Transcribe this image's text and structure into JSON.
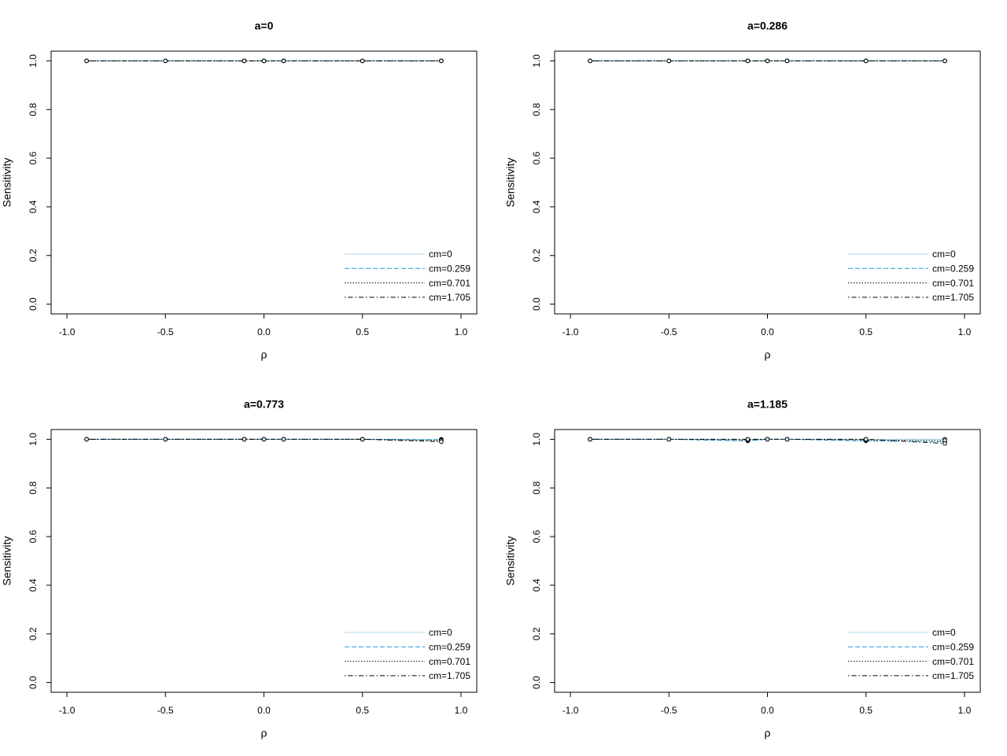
{
  "chart_data": [
    {
      "type": "line",
      "title": "a=0",
      "xlabel": "ρ",
      "ylabel": "Sensitivity",
      "x": [
        -0.9,
        -0.5,
        -0.1,
        0,
        0.1,
        0.5,
        0.9
      ],
      "series": [
        {
          "name": "cm=0",
          "color": "#add8e6",
          "dash": "solid",
          "values": [
            1,
            1,
            1,
            1,
            1,
            1,
            1
          ]
        },
        {
          "name": "cm=0.259",
          "color": "#1e9bd7",
          "dash": "dashed",
          "values": [
            1,
            1,
            1,
            1,
            1,
            1,
            1
          ]
        },
        {
          "name": "cm=0.701",
          "color": "#000000",
          "dash": "dotted",
          "values": [
            1,
            1,
            1,
            1,
            1,
            1,
            1
          ]
        },
        {
          "name": "cm=1.705",
          "color": "#000000",
          "dash": "dotdash",
          "values": [
            1,
            1,
            1,
            1,
            1,
            1,
            1
          ]
        }
      ],
      "xlim": [
        -1,
        1
      ],
      "xticks": [
        {
          "value": -1,
          "label": "-1.0"
        },
        -0.5,
        {
          "value": 0,
          "label": "0.0"
        },
        0.5,
        {
          "value": 1,
          "label": "1.0"
        }
      ],
      "ylim": [
        0,
        1
      ],
      "yticks": [
        {
          "value": 0,
          "label": "0.0"
        },
        0.2,
        0.4,
        0.6,
        0.8,
        {
          "value": 1,
          "label": "1.0"
        }
      ],
      "legend": "bottom-right"
    },
    {
      "type": "line",
      "title": "a=0.286",
      "xlabel": "ρ",
      "ylabel": "Sensitivity",
      "x": [
        -0.9,
        -0.5,
        -0.1,
        0,
        0.1,
        0.5,
        0.9
      ],
      "series": [
        {
          "name": "cm=0",
          "color": "#add8e6",
          "dash": "solid",
          "values": [
            1,
            1,
            1,
            1,
            1,
            1,
            1
          ]
        },
        {
          "name": "cm=0.259",
          "color": "#1e9bd7",
          "dash": "dashed",
          "values": [
            1,
            1,
            1,
            1,
            1,
            1,
            1
          ]
        },
        {
          "name": "cm=0.701",
          "color": "#000000",
          "dash": "dotted",
          "values": [
            1,
            1,
            1,
            1,
            1,
            1,
            1
          ]
        },
        {
          "name": "cm=1.705",
          "color": "#000000",
          "dash": "dotdash",
          "values": [
            1,
            1,
            1,
            1,
            1,
            1,
            1
          ]
        }
      ],
      "xlim": [
        -1,
        1
      ],
      "xticks": [
        {
          "value": -1,
          "label": "-1.0"
        },
        -0.5,
        {
          "value": 0,
          "label": "0.0"
        },
        0.5,
        {
          "value": 1,
          "label": "1.0"
        }
      ],
      "ylim": [
        0,
        1
      ],
      "yticks": [
        {
          "value": 0,
          "label": "0.0"
        },
        0.2,
        0.4,
        0.6,
        0.8,
        {
          "value": 1,
          "label": "1.0"
        }
      ],
      "legend": "bottom-right"
    },
    {
      "type": "line",
      "title": "a=0.773",
      "xlabel": "ρ",
      "ylabel": "Sensitivity",
      "x": [
        -0.9,
        -0.5,
        -0.1,
        0,
        0.1,
        0.5,
        0.9
      ],
      "series": [
        {
          "name": "cm=0",
          "color": "#add8e6",
          "dash": "solid",
          "values": [
            1,
            1,
            1,
            1,
            1,
            1,
            1
          ]
        },
        {
          "name": "cm=0.259",
          "color": "#1e9bd7",
          "dash": "dashed",
          "values": [
            1,
            1,
            1,
            1,
            1,
            1,
            0.997
          ]
        },
        {
          "name": "cm=0.701",
          "color": "#000000",
          "dash": "dotted",
          "values": [
            1,
            1,
            1,
            1,
            1,
            1,
            0.995
          ]
        },
        {
          "name": "cm=1.705",
          "color": "#000000",
          "dash": "dotdash",
          "values": [
            1,
            1,
            1,
            1,
            1,
            1,
            0.99
          ]
        }
      ],
      "xlim": [
        -1,
        1
      ],
      "xticks": [
        {
          "value": -1,
          "label": "-1.0"
        },
        -0.5,
        {
          "value": 0,
          "label": "0.0"
        },
        0.5,
        {
          "value": 1,
          "label": "1.0"
        }
      ],
      "ylim": [
        0,
        1
      ],
      "yticks": [
        {
          "value": 0,
          "label": "0.0"
        },
        0.2,
        0.4,
        0.6,
        0.8,
        {
          "value": 1,
          "label": "1.0"
        }
      ],
      "legend": "bottom-right"
    },
    {
      "type": "line",
      "title": "a=1.185",
      "xlabel": "ρ",
      "ylabel": "Sensitivity",
      "x": [
        -0.9,
        -0.5,
        -0.1,
        0,
        0.1,
        0.5,
        0.9
      ],
      "series": [
        {
          "name": "cm=0",
          "color": "#add8e6",
          "dash": "solid",
          "values": [
            1,
            1,
            1,
            1,
            1,
            1,
            1
          ]
        },
        {
          "name": "cm=0.259",
          "color": "#1e9bd7",
          "dash": "dashed",
          "values": [
            1,
            1,
            0.993,
            1,
            1,
            0.993,
            0.99
          ]
        },
        {
          "name": "cm=0.701",
          "color": "#000000",
          "dash": "dotted",
          "values": [
            1,
            1,
            0.997,
            1,
            1,
            0.997,
            0.995
          ]
        },
        {
          "name": "cm=1.705",
          "color": "#000000",
          "dash": "dotdash",
          "values": [
            1,
            1,
            1,
            1,
            1,
            1,
            0.983
          ]
        }
      ],
      "xlim": [
        -1,
        1
      ],
      "xticks": [
        {
          "value": -1,
          "label": "-1.0"
        },
        -0.5,
        {
          "value": 0,
          "label": "0.0"
        },
        0.5,
        {
          "value": 1,
          "label": "1.0"
        }
      ],
      "ylim": [
        0,
        1
      ],
      "yticks": [
        {
          "value": 0,
          "label": "0.0"
        },
        0.2,
        0.4,
        0.6,
        0.8,
        {
          "value": 1,
          "label": "1.0"
        }
      ],
      "legend": "bottom-right"
    }
  ]
}
